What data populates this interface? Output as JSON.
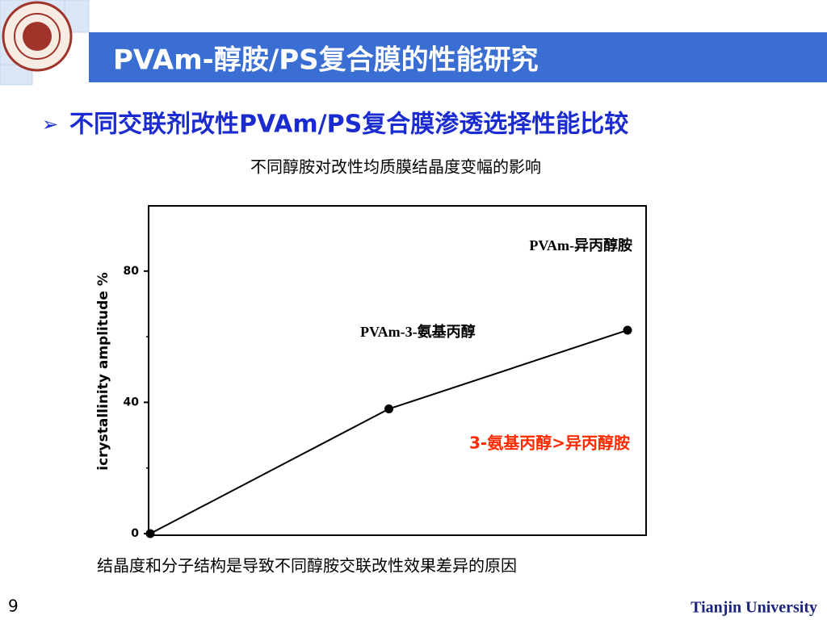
{
  "header": {
    "title": "PVAm-醇胺/PS复合膜的性能研究"
  },
  "bullet": "不同交联剂改性PVAm/PS复合膜渗透选择性能比较",
  "chart_data": {
    "type": "line",
    "title": "不同醇胺对改性均质膜结晶度变幅的影响",
    "y_label": "icrystallinity amplitude %",
    "categories": [
      null,
      null,
      null
    ],
    "series": [
      {
        "color": "#000000",
        "values": [
          0,
          38,
          62
        ]
      }
    ],
    "ylim": [
      0,
      100
    ],
    "yticks": [
      0,
      40,
      80
    ],
    "yminor_ticks": [
      20,
      60
    ],
    "annotations": [
      {
        "text": "PVAm-异丙醇胺",
        "color": "#000000"
      },
      {
        "text": "PVAm-3-氨基丙醇",
        "color": "#000000"
      },
      {
        "text": "3-氨基丙醇>异丙醇胺",
        "color": "#ff2a00"
      }
    ]
  },
  "conclusion": "结晶度和分子结构是导致不同醇胺交联改性效果差异的原因",
  "footer": {
    "page": "9",
    "org": "Tianjin University"
  }
}
